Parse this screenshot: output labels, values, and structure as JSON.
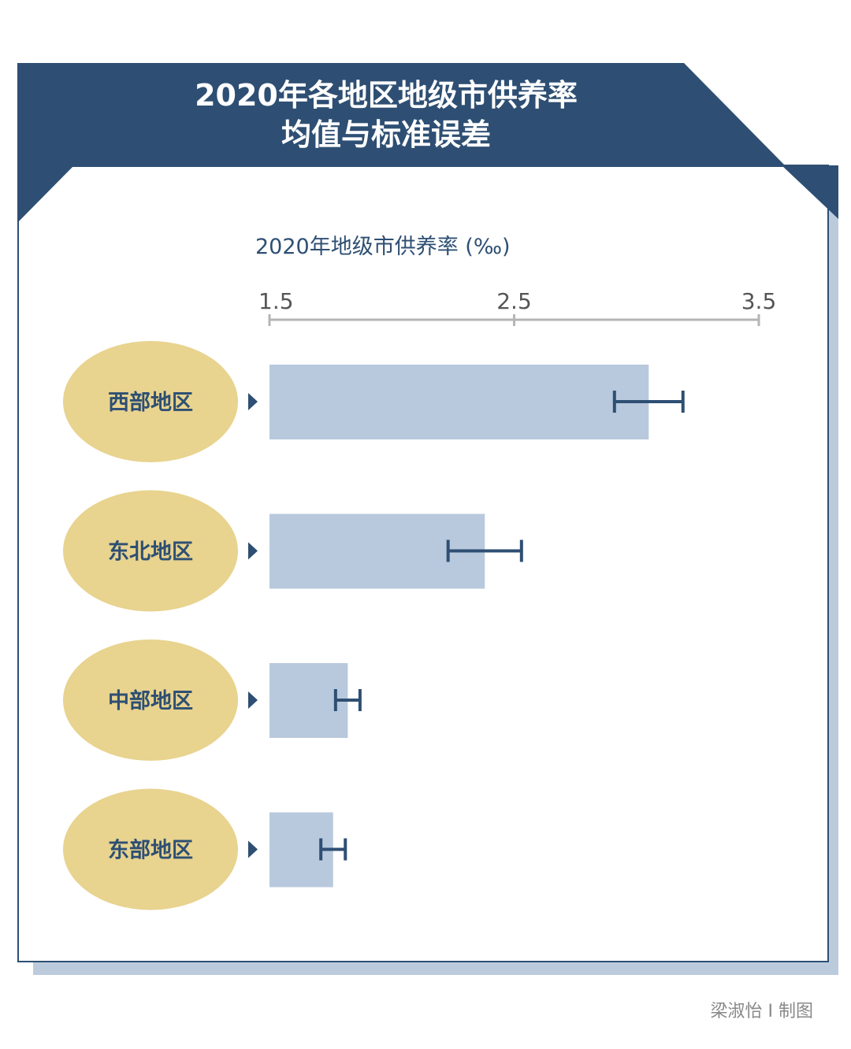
{
  "header": {
    "title_line1": "2020年各地区地级市供养率",
    "title_line2": "均值与标准误差"
  },
  "colors": {
    "header": "#2e4f73",
    "bar": "#b8c9dd",
    "error_bar": "#2e4f73",
    "label_ellipse": "#e8d38f",
    "shadow": "#bccbdc",
    "axis": "#b5b5b5"
  },
  "chart_data": {
    "type": "bar",
    "orientation": "horizontal",
    "xlabel": "2020年地级市供养率 (‰)",
    "xlim": [
      1.5,
      3.5
    ],
    "xticks": [
      "1.5",
      "2.5",
      "3.5"
    ],
    "grid": false,
    "categories": [
      "西部地区",
      "东北地区",
      "中部地区",
      "东部地区"
    ],
    "values": [
      3.05,
      2.38,
      1.82,
      1.76
    ],
    "errors": [
      0.14,
      0.15,
      0.05,
      0.05
    ]
  },
  "credit": "梁淑怡 I 制图"
}
